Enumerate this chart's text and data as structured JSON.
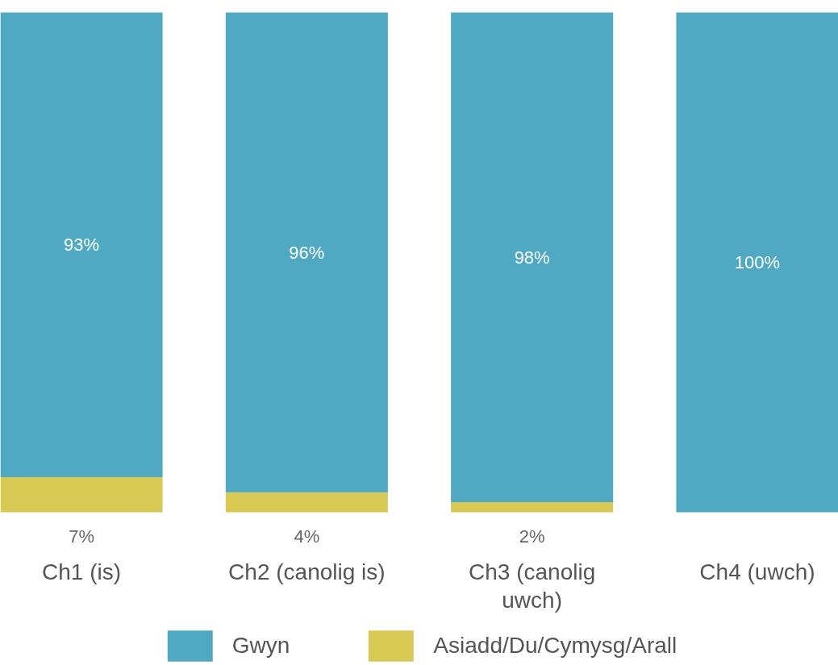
{
  "chart_data": {
    "type": "bar",
    "stacked": true,
    "categories": [
      "Ch1 (is)",
      "Ch2 (canolig is)",
      "Ch3 (canolig uwch)",
      "Ch4 (uwch)"
    ],
    "ylim": [
      0,
      100
    ],
    "tick_labels": "x",
    "grid": false,
    "legend": "bottom",
    "series": [
      {
        "name": "Asiadd/Du/Cymysg/Arall",
        "color": "#d8c955",
        "values": [
          7,
          4,
          2,
          0
        ],
        "value_labels": [
          "7%",
          "4%",
          "2%",
          null
        ]
      },
      {
        "name": "Gwyn",
        "color": "#4fa9c2",
        "values": [
          93,
          96,
          98,
          100
        ],
        "value_labels": [
          "93%",
          "96%",
          "98%",
          "100%"
        ]
      }
    ]
  }
}
